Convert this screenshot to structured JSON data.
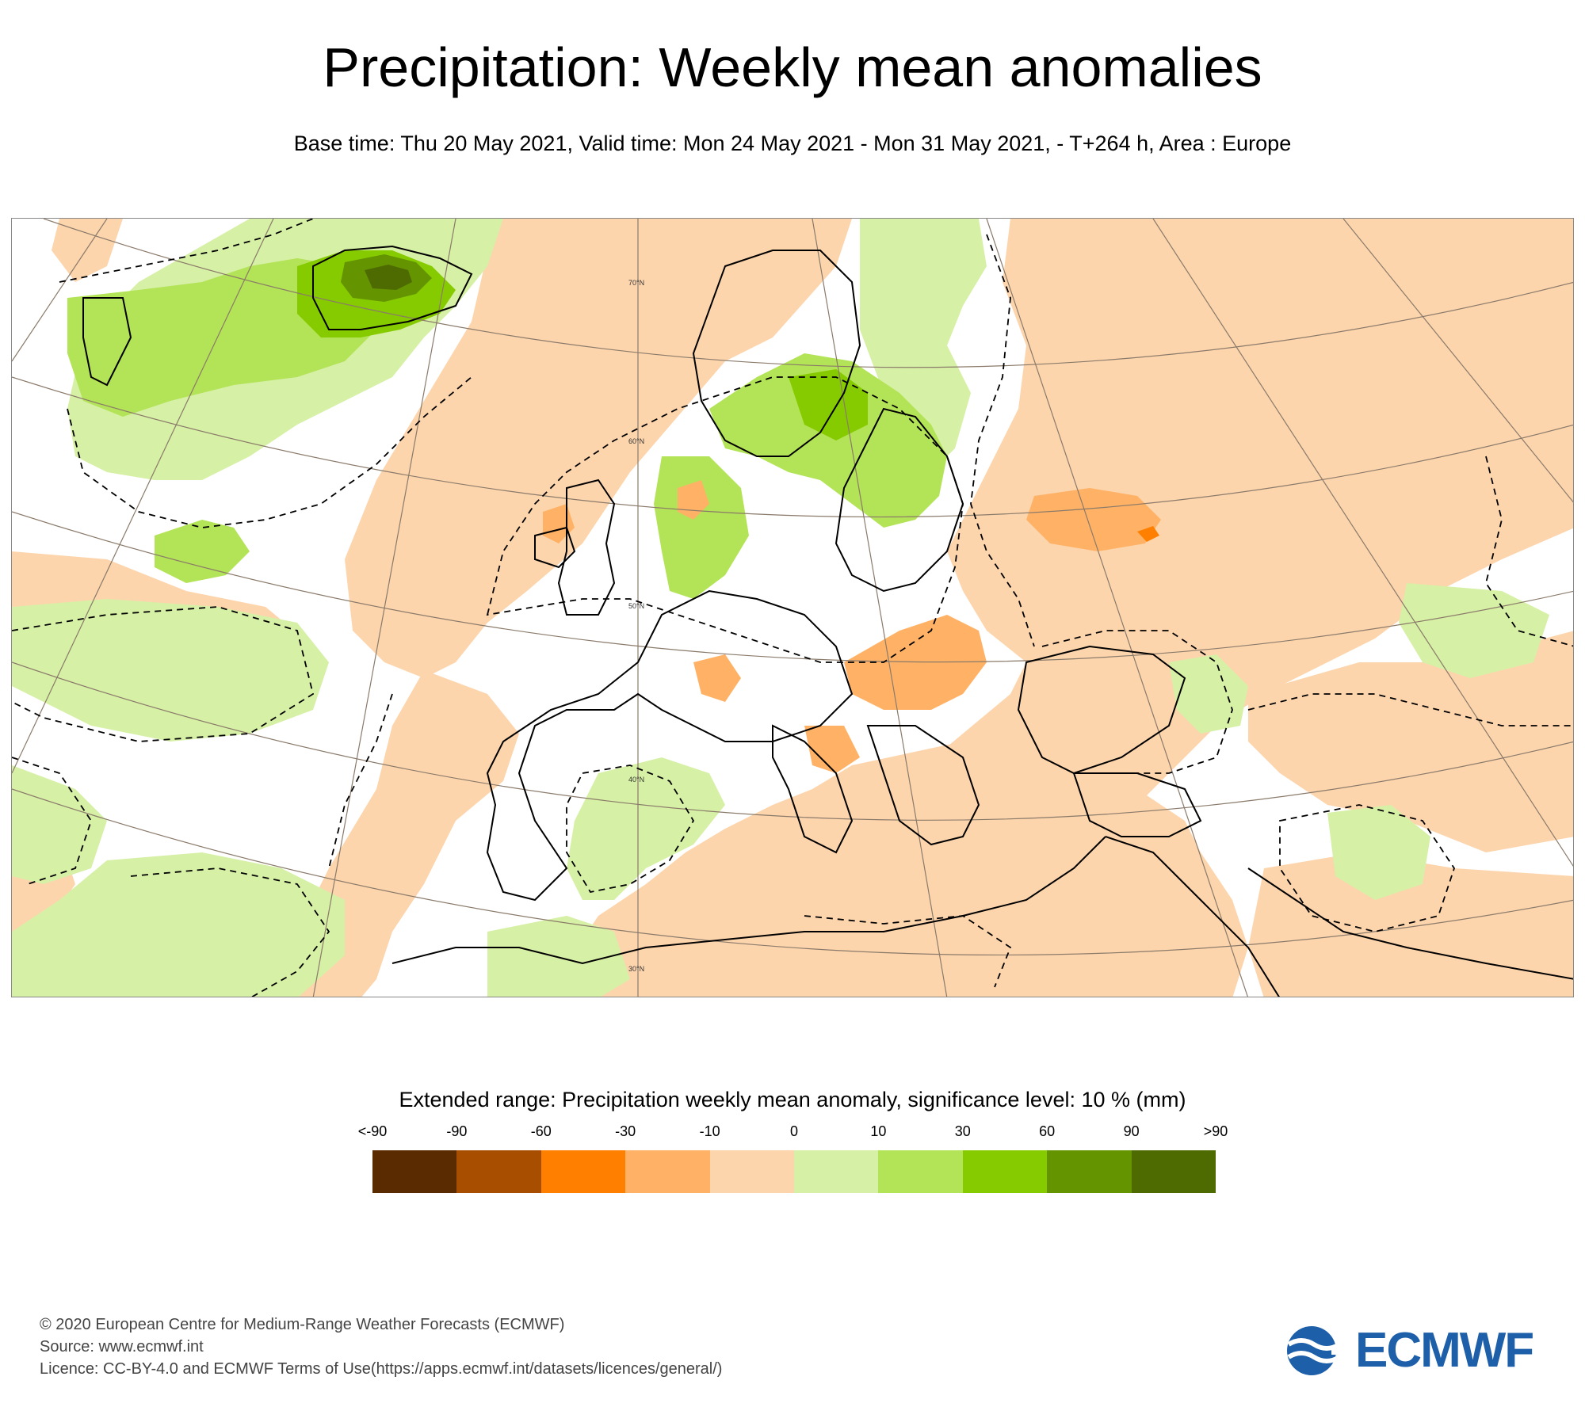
{
  "header": {
    "title": "Precipitation: Weekly mean anomalies",
    "subtitle": "Base time: Thu 20 May 2021, Valid time: Mon 24 May 2021 - Mon 31 May 2021, - T+264 h, Area : Europe"
  },
  "map": {
    "area": "Europe",
    "latitude_labels": [
      "70°N",
      "60°N",
      "50°N",
      "40°N",
      "30°N"
    ]
  },
  "legend": {
    "title": "Extended range: Precipitation weekly mean anomaly, significance level: 10 % (mm)",
    "ticks": [
      "<-90",
      "-90",
      "-60",
      "-30",
      "-10",
      "0",
      "10",
      "30",
      "60",
      "90",
      ">90"
    ],
    "colors": [
      "#5a2b00",
      "#a84e00",
      "#ff7f00",
      "#ffb266",
      "#fdd5ad",
      "#d6f0a6",
      "#b3e356",
      "#86cb00",
      "#649400",
      "#4d6b00"
    ]
  },
  "footer": {
    "line1": "© 2020 European Centre for Medium-Range Weather Forecasts (ECMWF)",
    "line2": "Source: www.ecmwf.int",
    "line3": "Licence: CC-BY-4.0 and ECMWF Terms of Use(https://apps.ecmwf.int/datasets/licences/general/)"
  },
  "logo": {
    "text": "ECMWF",
    "color": "#1d5fa8"
  }
}
